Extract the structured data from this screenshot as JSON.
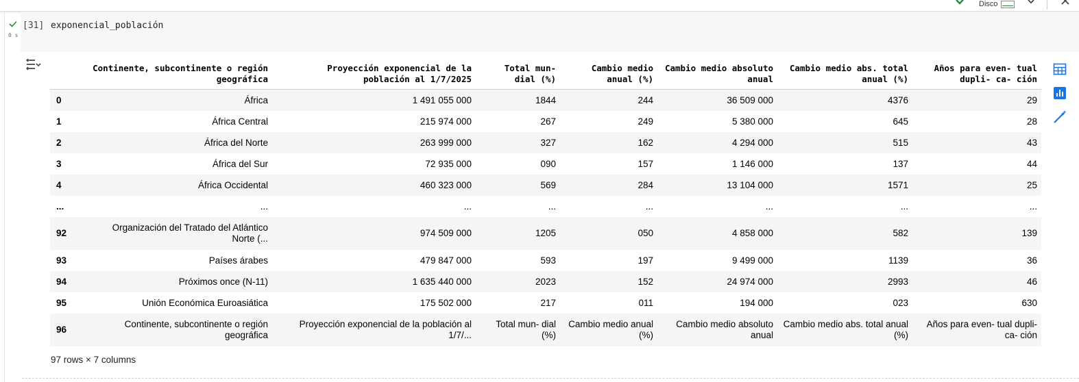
{
  "cell": {
    "exec_count": "[31]",
    "exec_time": "0 s",
    "code": "exponencial_población"
  },
  "topbar": {
    "disk_label": "Disco"
  },
  "table": {
    "columns": [
      "",
      "Continente, subcontinente o región geográfica",
      "Proyección exponencial de la población al 1/7/2025",
      "Total mun- dial (%)",
      "Cambio medio anual (%)",
      "Cambio medio absoluto anual",
      "Cambio medio abs. total anual (%)",
      "Años para even- tual dupli- ca- ción"
    ],
    "rows": [
      [
        "0",
        "África",
        "1 491 055 000",
        "1844",
        "244",
        "36 509 000",
        "4376",
        "29"
      ],
      [
        "1",
        "África Central",
        "215 974 000",
        "267",
        "249",
        "5 380 000",
        "645",
        "28"
      ],
      [
        "2",
        "África del Norte",
        "263 999 000",
        "327",
        "162",
        "4 294 000",
        "515",
        "43"
      ],
      [
        "3",
        "África del Sur",
        "72 935 000",
        "090",
        "157",
        "1 146 000",
        "137",
        "44"
      ],
      [
        "4",
        "África Occidental",
        "460 323 000",
        "569",
        "284",
        "13 104 000",
        "1571",
        "25"
      ],
      [
        "...",
        "...",
        "...",
        "...",
        "...",
        "...",
        "...",
        "..."
      ],
      [
        "92",
        "Organización del Tratado del Atlántico Norte (...",
        "974 509 000",
        "1205",
        "050",
        "4 858 000",
        "582",
        "139"
      ],
      [
        "93",
        "Países árabes",
        "479 847 000",
        "593",
        "197",
        "9 499 000",
        "1139",
        "36"
      ],
      [
        "94",
        "Próximos once (N-11)",
        "1 635 440 000",
        "2023",
        "152",
        "24 974 000",
        "2993",
        "46"
      ],
      [
        "95",
        "Unión Económica Euroasiática",
        "175 502 000",
        "217",
        "011",
        "194 000",
        "023",
        "630"
      ],
      [
        "96",
        "Continente, subcontinente o región geográfica",
        "Proyección exponencial de la población al 1/7/...",
        "Total mun- dial (%)",
        "Cambio medio anual (%)",
        "Cambio medio absoluto anual",
        "Cambio medio abs. total anual (%)",
        "Años para even- tual dupli- ca- ción"
      ]
    ],
    "footer": "97 rows × 7 columns"
  }
}
